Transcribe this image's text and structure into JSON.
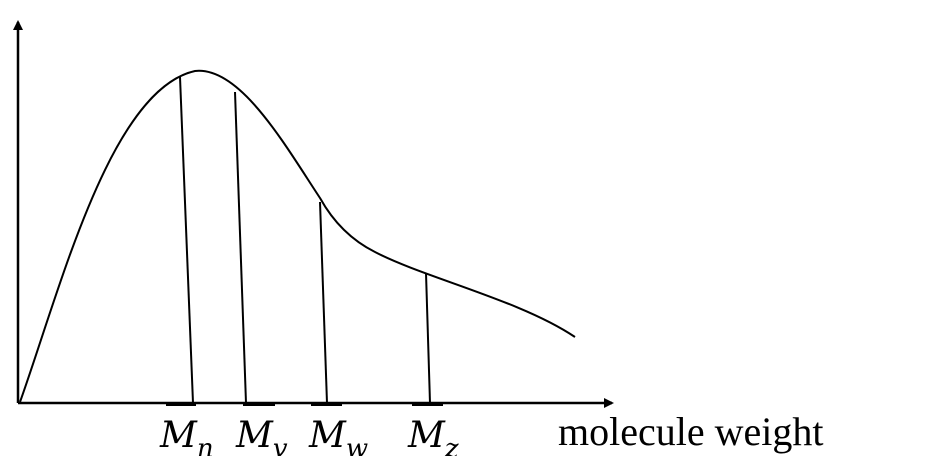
{
  "x_axis_label": "molecule weight",
  "averages": [
    {
      "symbol": "M",
      "subscript": "n"
    },
    {
      "symbol": "M",
      "subscript": "v"
    },
    {
      "symbol": "M",
      "subscript": "w"
    },
    {
      "symbol": "M",
      "subscript": "z"
    }
  ],
  "colors": {
    "stroke": "#000000",
    "background": "#ffffff"
  }
}
